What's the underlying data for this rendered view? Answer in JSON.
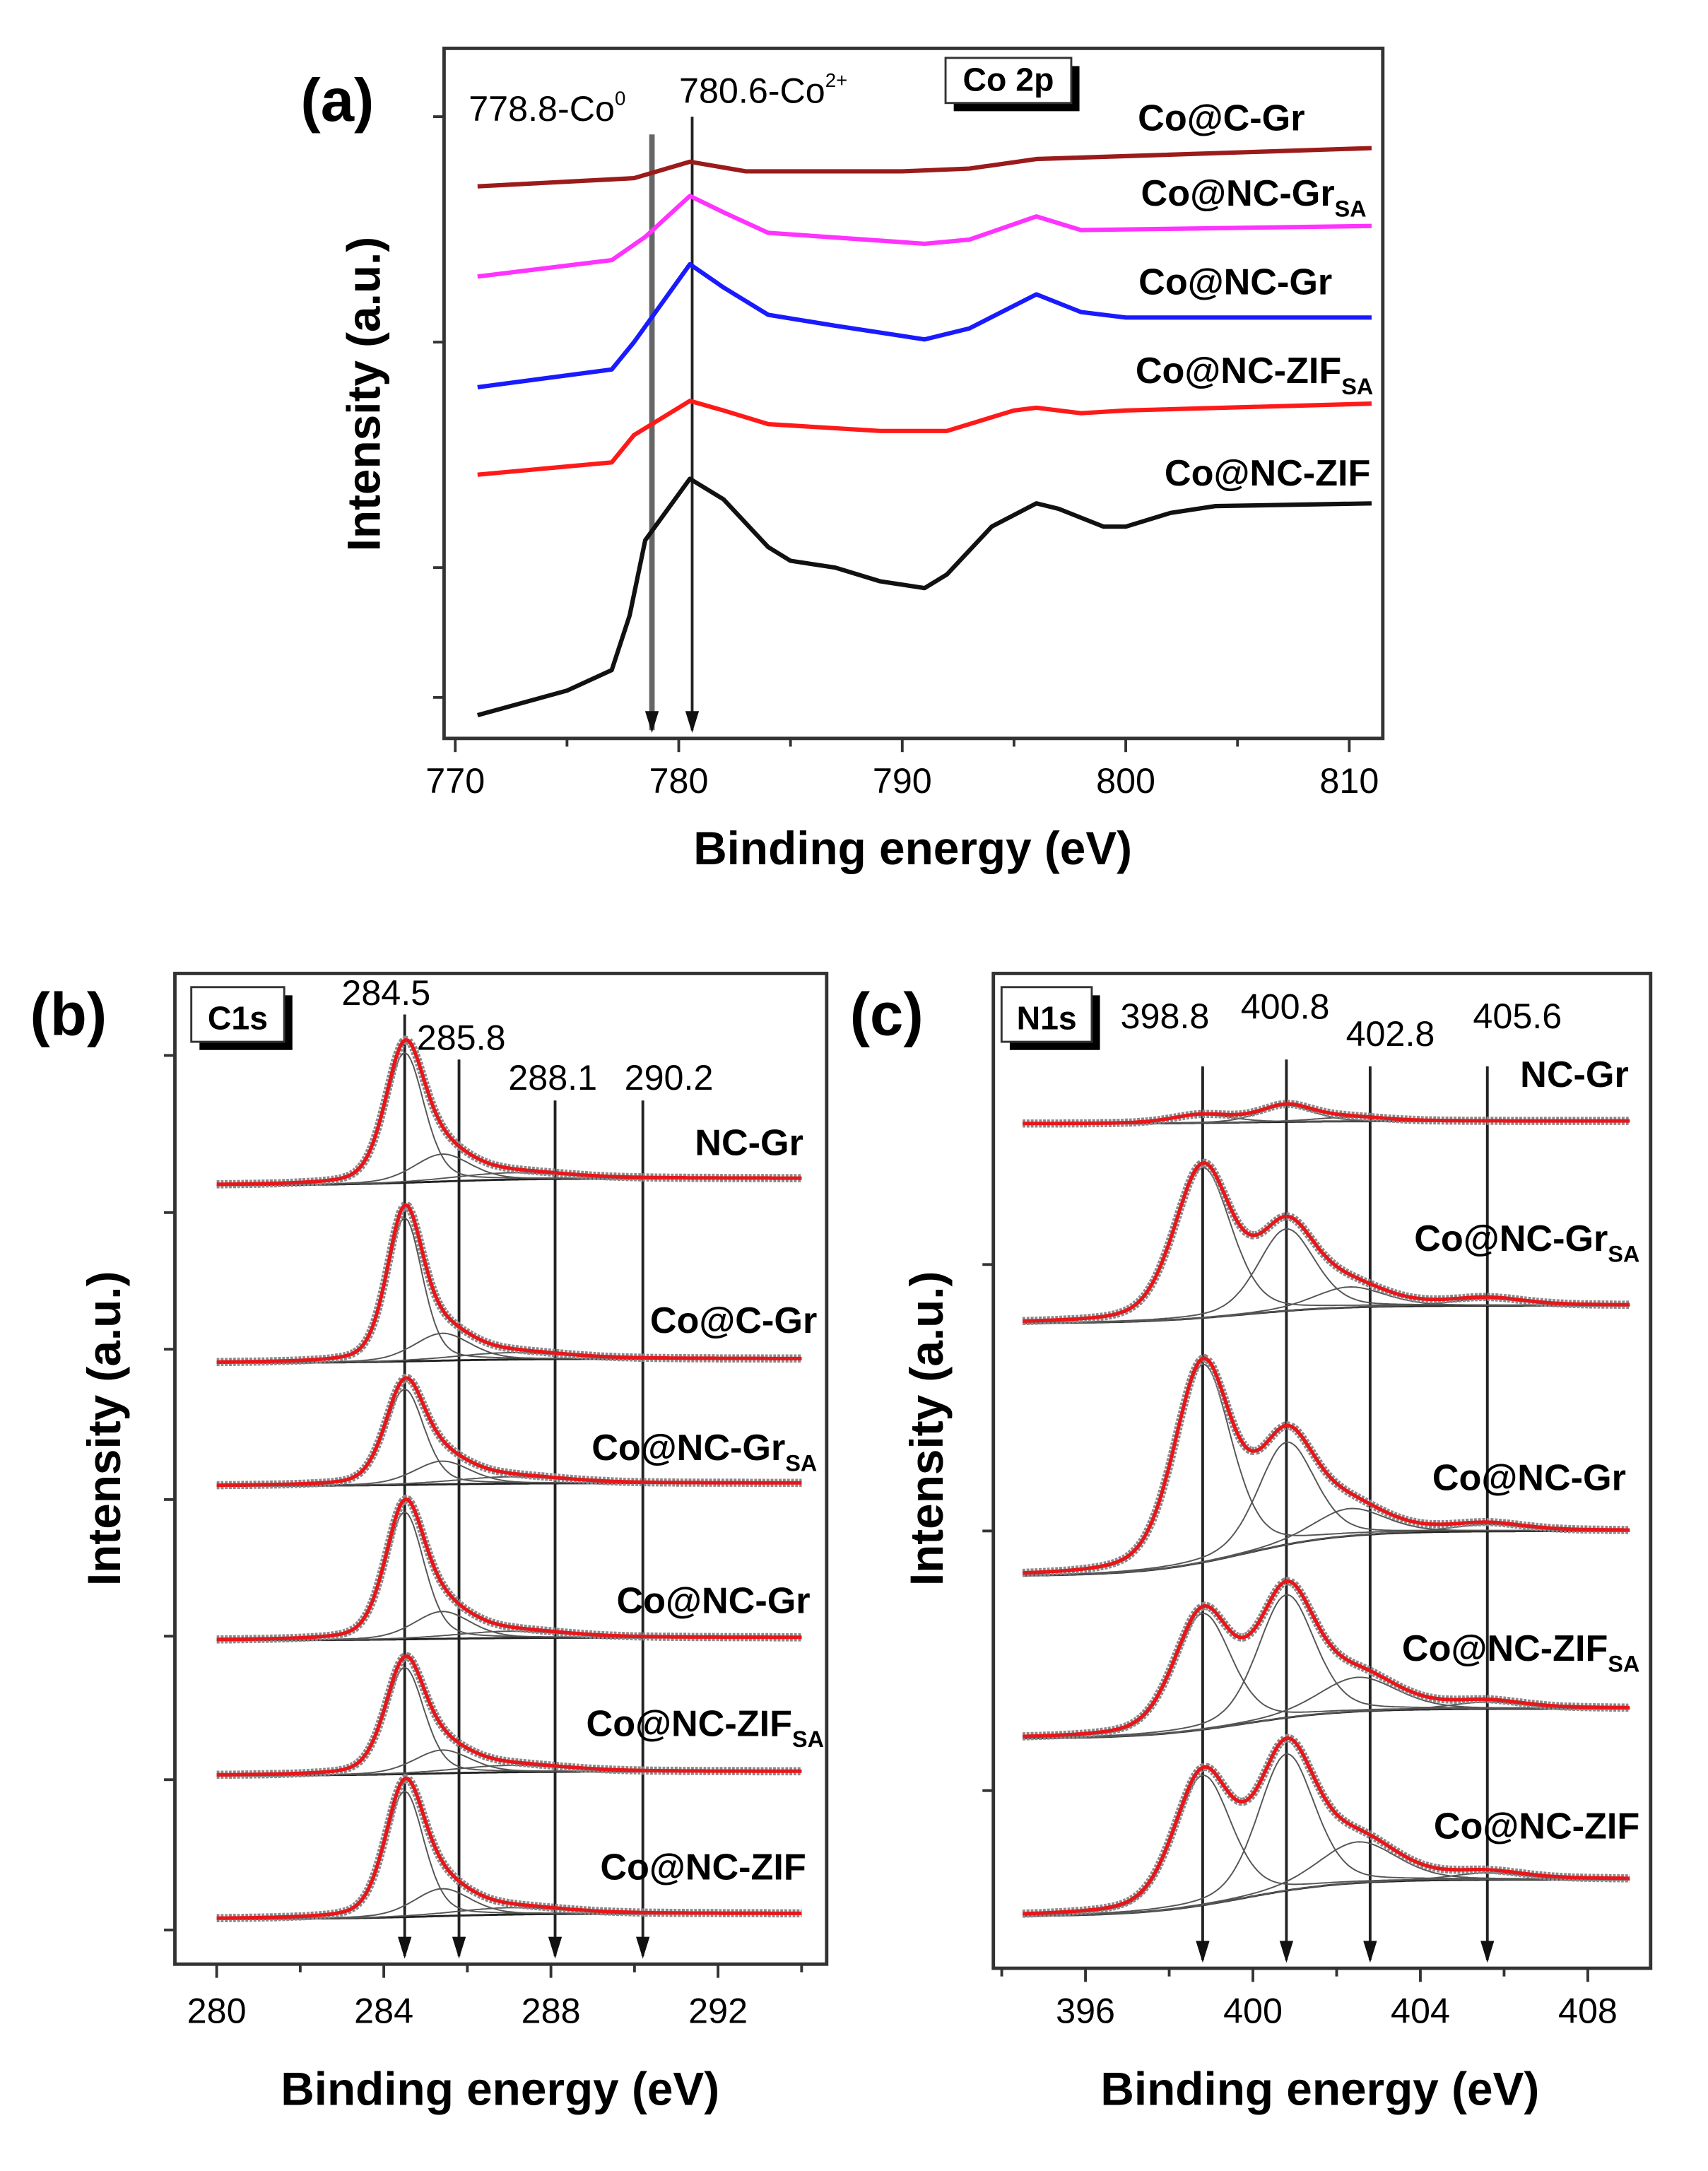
{
  "chart_data": [
    {
      "panel": "(a)",
      "type": "line",
      "title": "Co 2p",
      "xlabel": "Binding energy (eV)",
      "ylabel": "Intensity (a.u.)",
      "xlim": [
        769.5,
        811.5
      ],
      "ylim": [
        0,
        5.05
      ],
      "xticks": [
        770,
        780,
        790,
        800,
        810
      ],
      "annotations": [
        {
          "x": 778.8,
          "text": "778.8-Co",
          "sup": "0"
        },
        {
          "x": 780.6,
          "text": "780.6-Co",
          "sup": "2+"
        }
      ],
      "series": [
        {
          "name": "Co@C-Gr",
          "sub": "",
          "color": "#9b1b1b",
          "x": [
            771,
            778,
            780.5,
            783,
            790,
            793,
            796,
            811
          ],
          "y": [
            4.04,
            4.1,
            4.22,
            4.15,
            4.15,
            4.17,
            4.24,
            4.32
          ]
        },
        {
          "name": "Co@NC-Gr",
          "sub": "SA",
          "color": "#ff33ff",
          "x": [
            771,
            777,
            778.5,
            780.5,
            782,
            784,
            791,
            793,
            796,
            798,
            811
          ],
          "y": [
            3.38,
            3.5,
            3.67,
            3.97,
            3.85,
            3.7,
            3.62,
            3.65,
            3.82,
            3.72,
            3.75
          ]
        },
        {
          "name": "Co@NC-Gr",
          "sub": "",
          "color": "#1a1aff",
          "x": [
            771,
            777,
            778,
            780.5,
            782,
            784,
            787,
            791,
            793,
            796,
            798,
            800,
            811
          ],
          "y": [
            2.57,
            2.7,
            2.9,
            3.47,
            3.3,
            3.1,
            3.02,
            2.92,
            3.0,
            3.25,
            3.12,
            3.08,
            3.08
          ]
        },
        {
          "name": "Co@NC-ZIF",
          "sub": "SA",
          "color": "#ff1a1a",
          "x": [
            771,
            777,
            778,
            780.5,
            782,
            784,
            789,
            792,
            795,
            796,
            798,
            800,
            811
          ],
          "y": [
            1.93,
            2.02,
            2.22,
            2.47,
            2.4,
            2.3,
            2.25,
            2.25,
            2.4,
            2.42,
            2.38,
            2.4,
            2.45
          ]
        },
        {
          "name": "Co@NC-ZIF",
          "sub": "",
          "color": "#111111",
          "x": [
            771,
            775,
            777,
            777.8,
            778.5,
            780.5,
            782,
            784,
            785,
            787,
            789,
            791,
            792,
            794,
            796,
            797,
            799,
            800,
            802,
            804,
            811
          ],
          "y": [
            0.17,
            0.35,
            0.5,
            0.9,
            1.45,
            1.9,
            1.75,
            1.4,
            1.3,
            1.25,
            1.15,
            1.1,
            1.2,
            1.55,
            1.72,
            1.68,
            1.55,
            1.55,
            1.65,
            1.7,
            1.72
          ]
        }
      ]
    },
    {
      "panel": "(b)",
      "type": "line",
      "title": "C1s",
      "xlabel": "Binding energy (eV)",
      "ylabel": "Intensity (a.u.)",
      "xlim": [
        279,
        294.6
      ],
      "ylim": [
        0,
        7.25
      ],
      "xticks": [
        280,
        284,
        288,
        292
      ],
      "annotations": [
        {
          "x": 284.5,
          "text": "284.5"
        },
        {
          "x": 285.8,
          "text": "285.8"
        },
        {
          "x": 288.1,
          "text": "288.1"
        },
        {
          "x": 290.2,
          "text": "290.2"
        }
      ],
      "series": [
        {
          "name": "NC-Gr",
          "sub": "",
          "offset": 5.7,
          "offset_end": 5.75,
          "peaks": [
            [
              284.5,
              0.95,
              1.1
            ],
            [
              285.4,
              0.2,
              1.6
            ],
            [
              287,
              0.05,
              3
            ]
          ]
        },
        {
          "name": "Co@C-Gr",
          "sub": "",
          "offset": 4.4,
          "offset_end": 4.43,
          "peaks": [
            [
              284.5,
              1.05,
              1.0
            ],
            [
              285.4,
              0.2,
              1.6
            ],
            [
              287,
              0.05,
              3
            ]
          ]
        },
        {
          "name": "Co@NC-Gr",
          "sub": "SA",
          "offset": 3.5,
          "offset_end": 3.52,
          "peaks": [
            [
              284.5,
              0.7,
              1.1
            ],
            [
              285.4,
              0.17,
              1.6
            ],
            [
              287,
              0.05,
              3
            ]
          ]
        },
        {
          "name": "Co@NC-Gr",
          "sub": "",
          "offset": 2.37,
          "offset_end": 2.39,
          "peaks": [
            [
              284.5,
              0.93,
              1.1
            ],
            [
              285.4,
              0.2,
              1.6
            ],
            [
              287,
              0.05,
              3
            ]
          ]
        },
        {
          "name": "Co@NC-ZIF",
          "sub": "SA",
          "offset": 1.38,
          "offset_end": 1.41,
          "peaks": [
            [
              284.5,
              0.78,
              1.1
            ],
            [
              285.4,
              0.17,
              1.6
            ],
            [
              287,
              0.05,
              3
            ]
          ]
        },
        {
          "name": "Co@NC-ZIF",
          "sub": "",
          "offset": 0.33,
          "offset_end": 0.37,
          "peaks": [
            [
              284.5,
              0.92,
              1.1
            ],
            [
              285.4,
              0.2,
              1.6
            ],
            [
              287,
              0.05,
              3
            ]
          ]
        }
      ]
    },
    {
      "panel": "(c)",
      "type": "line",
      "title": "N1s",
      "xlabel": "Binding energy (eV)",
      "ylabel": "Intensity (a.u.)",
      "xlim": [
        393.8,
        409.5
      ],
      "ylim": [
        0,
        7.28
      ],
      "xticks": [
        396,
        400,
        404,
        408
      ],
      "annotations": [
        {
          "x": 398.8,
          "text": "398.8"
        },
        {
          "x": 400.8,
          "text": "400.8"
        },
        {
          "x": 402.8,
          "text": "402.8"
        },
        {
          "x": 405.6,
          "text": "405.6"
        }
      ],
      "series": [
        {
          "name": "NC-Gr",
          "sub": "",
          "offset": 6.18,
          "offset_end": 6.2,
          "peaks": [
            [
              398.8,
              0.06,
              1.7
            ],
            [
              400.8,
              0.12,
              1.5
            ],
            [
              402.3,
              0.03,
              2
            ]
          ]
        },
        {
          "name": "Co@NC-Gr",
          "sub": "SA",
          "offset": 4.72,
          "offset_end": 4.85,
          "peaks": [
            [
              398.8,
              1.1,
              1.6
            ],
            [
              400.8,
              0.6,
              1.6
            ],
            [
              402.3,
              0.15,
              2
            ],
            [
              405.6,
              0.05,
              2
            ]
          ]
        },
        {
          "name": "Co@NC-Gr",
          "sub": "",
          "offset": 2.87,
          "offset_end": 3.2,
          "peaks": [
            [
              398.8,
              1.45,
              1.6
            ],
            [
              400.8,
              0.75,
              1.6
            ],
            [
              402.3,
              0.2,
              2
            ],
            [
              405.6,
              0.05,
              2
            ]
          ]
        },
        {
          "name": "Co@NC-ZIF",
          "sub": "SA",
          "offset": 1.68,
          "offset_end": 1.9,
          "peaks": [
            [
              398.8,
              0.85,
              1.6
            ],
            [
              400.8,
              0.9,
              1.6
            ],
            [
              402.5,
              0.25,
              2.2
            ],
            [
              405.6,
              0.05,
              2
            ]
          ]
        },
        {
          "name": "Co@NC-ZIF",
          "sub": "",
          "offset": 0.38,
          "offset_end": 0.65,
          "peaks": [
            [
              398.8,
              0.95,
              1.6
            ],
            [
              400.8,
              1.0,
              1.6
            ],
            [
              402.5,
              0.3,
              2.2
            ],
            [
              405.6,
              0.05,
              2
            ]
          ]
        }
      ]
    }
  ]
}
